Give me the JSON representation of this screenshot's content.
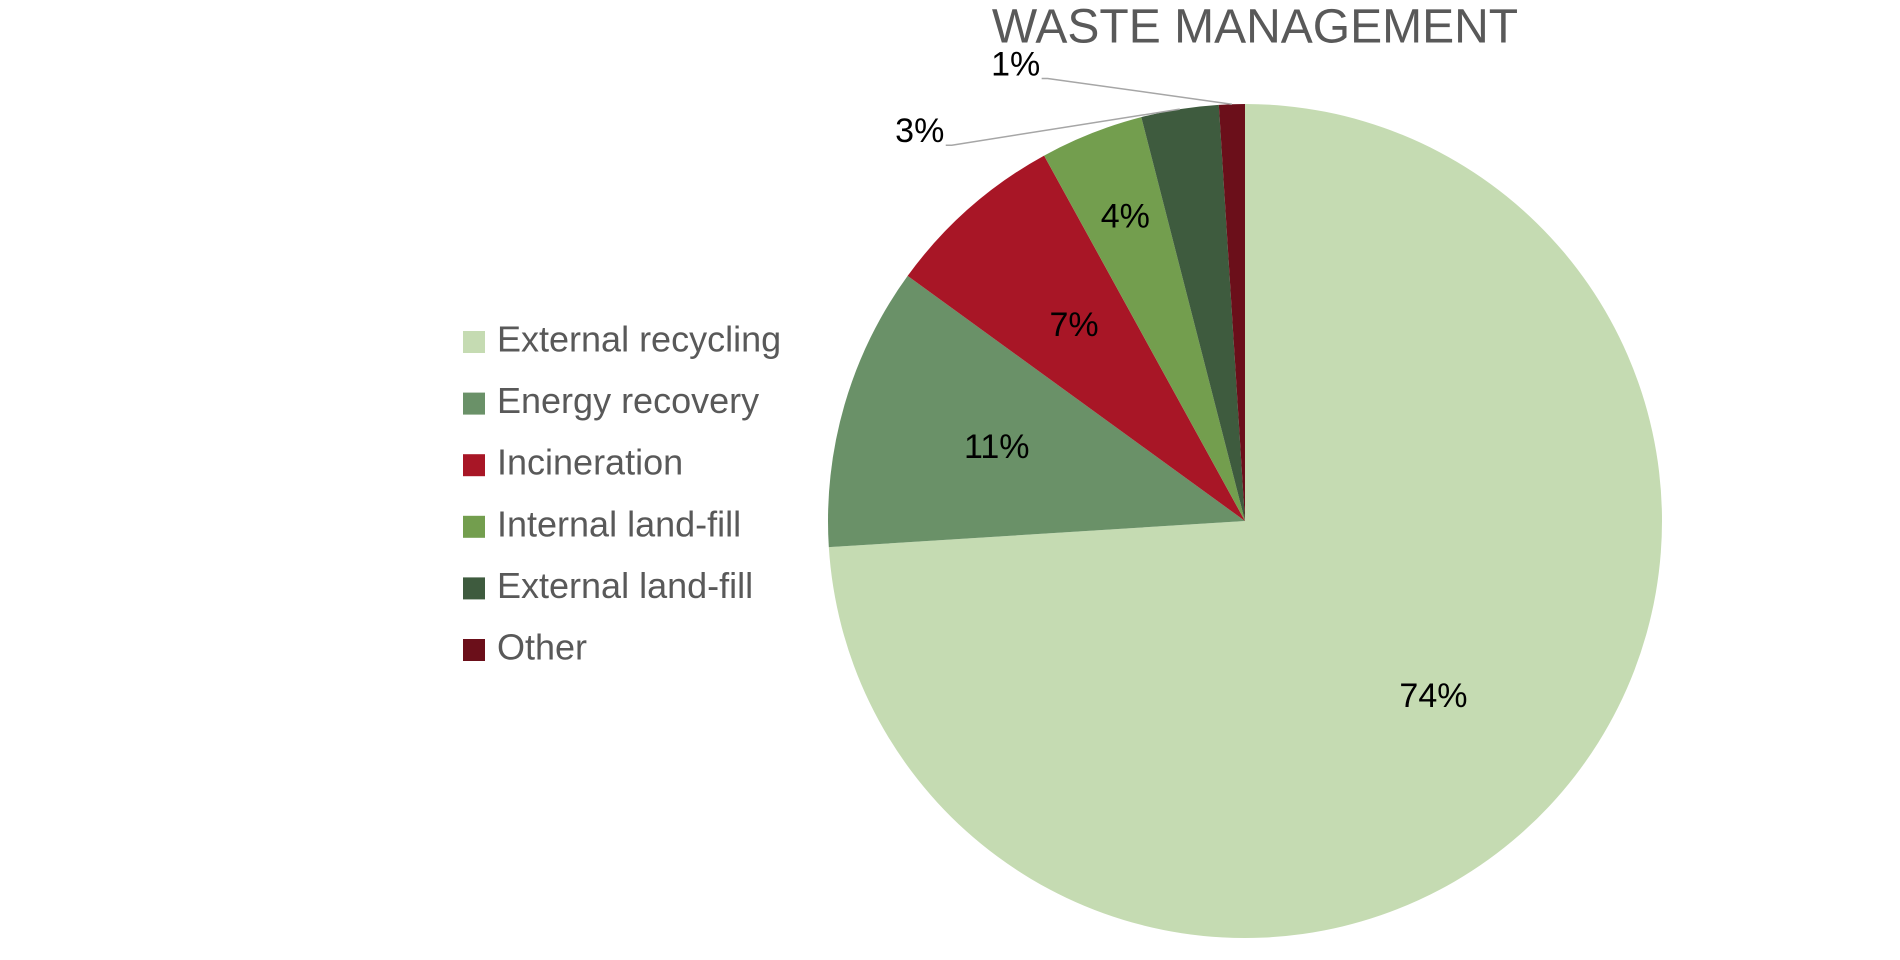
{
  "chart_data": {
    "type": "pie",
    "title": "WASTE MANAGEMENT",
    "categories": [
      "External recycling",
      "Energy recovery",
      "Incineration",
      "Internal land-fill",
      "External land-fill",
      "Other"
    ],
    "values": [
      74,
      11,
      7,
      4,
      3,
      1
    ],
    "value_labels": [
      "74%",
      "11%",
      "7%",
      "4%",
      "3%",
      "1%"
    ],
    "colors": [
      "#c5dbb2",
      "#6a9168",
      "#a81626",
      "#739e4e",
      "#3e5b3e",
      "#6b0f1a"
    ],
    "legend": "left"
  }
}
